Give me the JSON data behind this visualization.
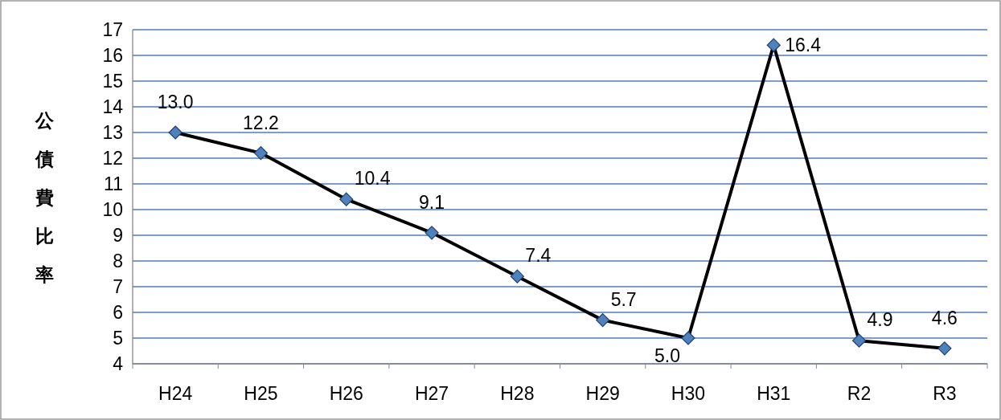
{
  "chart_data": {
    "type": "line",
    "ylabel": "公債費比率",
    "categories": [
      "H24",
      "H25",
      "H26",
      "H27",
      "H28",
      "H29",
      "H30",
      "H31",
      "R2",
      "R3"
    ],
    "values": [
      13.0,
      12.2,
      10.4,
      9.1,
      7.4,
      5.7,
      5.0,
      16.4,
      4.9,
      4.6
    ],
    "value_labels": [
      "13.0",
      "12.2",
      "10.4",
      "9.1",
      "7.4",
      "5.7",
      "5.0",
      "16.4",
      "4.9",
      "4.6"
    ],
    "color": "#000000",
    "marker": "diamond",
    "colors": [
      "#4f81bd",
      "#4f81bd",
      "#4f81bd",
      "#4f81bd",
      "#4f81bd",
      "#4f81bd",
      "#4f81bd",
      "#4f81bd",
      "#4f81bd",
      "#4f81bd"
    ],
    "ylim": [
      4,
      17
    ],
    "yticks": [
      4,
      5,
      6,
      7,
      8,
      9,
      10,
      11,
      12,
      13,
      14,
      15,
      16,
      17
    ],
    "grid": "y"
  }
}
